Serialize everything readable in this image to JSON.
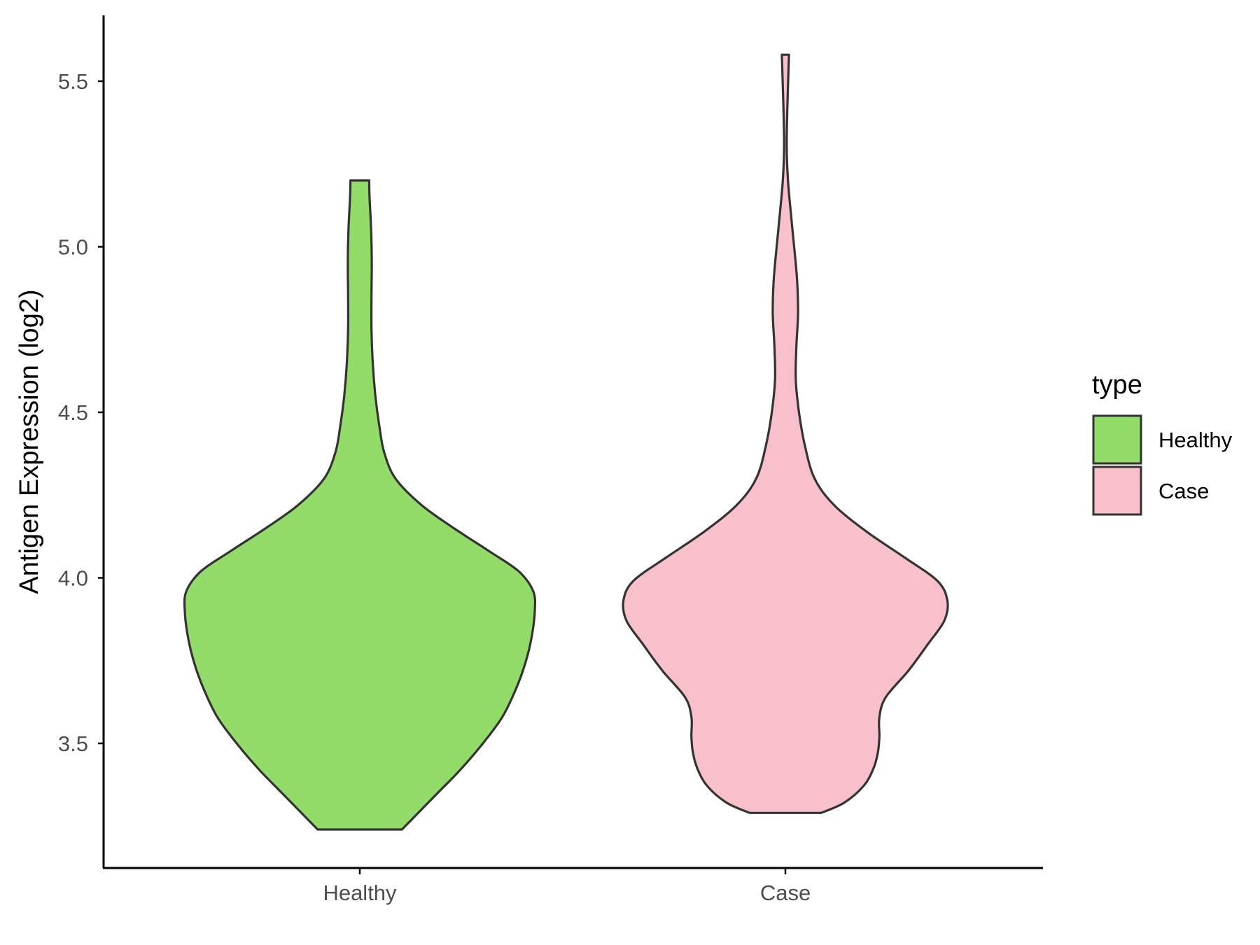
{
  "chart_data": {
    "type": "violin",
    "title": "",
    "xlabel": "",
    "ylabel": "Antigen Expression (log2)",
    "ylim": [
      3.13,
      5.7
    ],
    "y_ticks": [
      "3.5",
      "4.0",
      "4.5",
      "5.0",
      "5.5"
    ],
    "categories": [
      "Healthy",
      "Case"
    ],
    "grid": false,
    "legend": {
      "title": "type",
      "placement": "right",
      "entries": [
        "Healthy",
        "Case"
      ]
    },
    "series": [
      {
        "name": "Healthy",
        "color": "#93dc69",
        "y_min": 3.24,
        "y_max": 5.2,
        "density_profile": [
          [
            3.24,
            0.13
          ],
          [
            3.28,
            0.17
          ],
          [
            3.35,
            0.24
          ],
          [
            3.42,
            0.31
          ],
          [
            3.5,
            0.38
          ],
          [
            3.58,
            0.44
          ],
          [
            3.66,
            0.48
          ],
          [
            3.74,
            0.51
          ],
          [
            3.82,
            0.53
          ],
          [
            3.9,
            0.54
          ],
          [
            3.96,
            0.535
          ],
          [
            4.02,
            0.49
          ],
          [
            4.08,
            0.4
          ],
          [
            4.15,
            0.29
          ],
          [
            4.22,
            0.19
          ],
          [
            4.3,
            0.11
          ],
          [
            4.38,
            0.075
          ],
          [
            4.46,
            0.06
          ],
          [
            4.55,
            0.048
          ],
          [
            4.65,
            0.04
          ],
          [
            4.75,
            0.036
          ],
          [
            4.85,
            0.036
          ],
          [
            4.95,
            0.037
          ],
          [
            5.05,
            0.035
          ],
          [
            5.15,
            0.03
          ],
          [
            5.2,
            0.029
          ]
        ]
      },
      {
        "name": "Case",
        "color": "#f8c0cb",
        "y_min": 3.29,
        "y_max": 5.58,
        "density_profile": [
          [
            3.29,
            0.11
          ],
          [
            3.32,
            0.18
          ],
          [
            3.37,
            0.24
          ],
          [
            3.42,
            0.27
          ],
          [
            3.47,
            0.285
          ],
          [
            3.52,
            0.29
          ],
          [
            3.58,
            0.29
          ],
          [
            3.64,
            0.31
          ],
          [
            3.72,
            0.38
          ],
          [
            3.8,
            0.44
          ],
          [
            3.87,
            0.49
          ],
          [
            3.93,
            0.5
          ],
          [
            3.99,
            0.47
          ],
          [
            4.06,
            0.37
          ],
          [
            4.14,
            0.25
          ],
          [
            4.22,
            0.15
          ],
          [
            4.3,
            0.09
          ],
          [
            4.4,
            0.06
          ],
          [
            4.5,
            0.042
          ],
          [
            4.6,
            0.032
          ],
          [
            4.7,
            0.034
          ],
          [
            4.8,
            0.039
          ],
          [
            4.9,
            0.036
          ],
          [
            5.0,
            0.027
          ],
          [
            5.1,
            0.017
          ],
          [
            5.2,
            0.008
          ],
          [
            5.3,
            0.004
          ],
          [
            5.42,
            0.006
          ],
          [
            5.52,
            0.009
          ],
          [
            5.58,
            0.011
          ]
        ]
      }
    ]
  }
}
